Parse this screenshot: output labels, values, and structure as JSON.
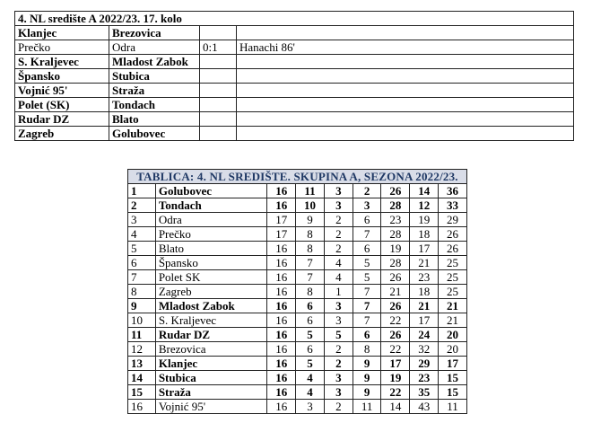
{
  "fixtures": {
    "title": "4. NL središte A 2022/23. 17. kolo",
    "rows": [
      {
        "home": "Klanjec",
        "away": "Brezovica",
        "score": "",
        "note": "",
        "bold": true
      },
      {
        "home": "Prečko",
        "away": "Odra",
        "score": "0:1",
        "note": "Hanachi 86'",
        "bold": false
      },
      {
        "home": "S. Kraljevec",
        "away": "Mladost Zabok",
        "score": "",
        "note": "",
        "bold": true
      },
      {
        "home": "Špansko",
        "away": "Stubica",
        "score": "",
        "note": "",
        "bold": true
      },
      {
        "home": "Vojnić 95'",
        "away": "Straža",
        "score": "",
        "note": "",
        "bold": true
      },
      {
        "home": "Polet (SK)",
        "away": "Tondach",
        "score": "",
        "note": "",
        "bold": true
      },
      {
        "home": "Rudar DZ",
        "away": "Blato",
        "score": "",
        "note": "",
        "bold": true
      },
      {
        "home": "Zagreb",
        "away": "Golubovec",
        "score": "",
        "note": "",
        "bold": true
      }
    ]
  },
  "standings": {
    "title": "TABLICA: 4. NL SREDIŠTE. SKUPINA A, SEZONA 2022/23.",
    "header_bg": "#d9dde8",
    "header_color": "#1f3864",
    "rows": [
      {
        "pos": "1",
        "team": "Golubovec",
        "vals": [
          "16",
          "11",
          "3",
          "2",
          "26",
          "14",
          "36"
        ],
        "bold": true
      },
      {
        "pos": "2",
        "team": "Tondach",
        "vals": [
          "16",
          "10",
          "3",
          "3",
          "28",
          "12",
          "33"
        ],
        "bold": true
      },
      {
        "pos": "3",
        "team": "Odra",
        "vals": [
          "17",
          "9",
          "2",
          "6",
          "23",
          "19",
          "29"
        ],
        "bold": false
      },
      {
        "pos": "4",
        "team": "Prečko",
        "vals": [
          "17",
          "8",
          "2",
          "7",
          "28",
          "18",
          "26"
        ],
        "bold": false
      },
      {
        "pos": "5",
        "team": "Blato",
        "vals": [
          "16",
          "8",
          "2",
          "6",
          "19",
          "17",
          "26"
        ],
        "bold": false
      },
      {
        "pos": "6",
        "team": "Špansko",
        "vals": [
          "16",
          "7",
          "4",
          "5",
          "28",
          "21",
          "25"
        ],
        "bold": false
      },
      {
        "pos": "7",
        "team": "Polet SK",
        "vals": [
          "16",
          "7",
          "4",
          "5",
          "26",
          "23",
          "25"
        ],
        "bold": false
      },
      {
        "pos": "8",
        "team": "Zagreb",
        "vals": [
          "16",
          "8",
          "1",
          "7",
          "21",
          "18",
          "25"
        ],
        "bold": false
      },
      {
        "pos": "9",
        "team": "Mladost Zabok",
        "vals": [
          "16",
          "6",
          "3",
          "7",
          "26",
          "21",
          "21"
        ],
        "bold": true
      },
      {
        "pos": "10",
        "team": "S. Kraljevec",
        "vals": [
          "16",
          "6",
          "3",
          "7",
          "22",
          "17",
          "21"
        ],
        "bold": false
      },
      {
        "pos": "11",
        "team": "Rudar DZ",
        "vals": [
          "16",
          "5",
          "5",
          "6",
          "26",
          "24",
          "20"
        ],
        "bold": true
      },
      {
        "pos": "12",
        "team": "Brezovica",
        "vals": [
          "16",
          "6",
          "2",
          "8",
          "22",
          "32",
          "20"
        ],
        "bold": false
      },
      {
        "pos": "13",
        "team": "Klanjec",
        "vals": [
          "16",
          "5",
          "2",
          "9",
          "17",
          "29",
          "17"
        ],
        "bold": true
      },
      {
        "pos": "14",
        "team": "Stubica",
        "vals": [
          "16",
          "4",
          "3",
          "9",
          "19",
          "23",
          "15"
        ],
        "bold": true
      },
      {
        "pos": "15",
        "team": "Straža",
        "vals": [
          "16",
          "4",
          "3",
          "9",
          "22",
          "35",
          "15"
        ],
        "bold": true
      },
      {
        "pos": "16",
        "team": "Vojnić 95'",
        "vals": [
          "16",
          "3",
          "2",
          "11",
          "14",
          "43",
          "11"
        ],
        "bold": false
      }
    ]
  }
}
